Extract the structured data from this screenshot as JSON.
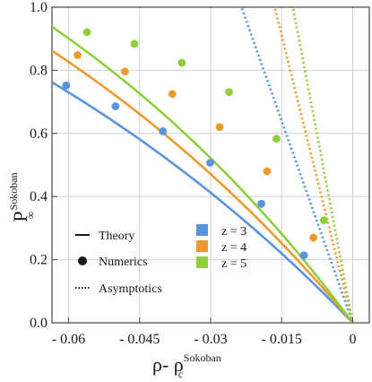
{
  "chart_data": {
    "type": "line",
    "xlabel_main": "ρ- ρ",
    "xlabel_sub": "c",
    "xlabel_sup": "Sokoban",
    "ylabel_main": "P",
    "ylabel_sub": "∞",
    "ylabel_sup": "Sokoban",
    "xlim": [
      -0.0635,
      0.0035
    ],
    "ylim": [
      0,
      1.0
    ],
    "x_ticks": [
      -0.06,
      -0.045,
      -0.03,
      -0.015,
      0
    ],
    "x_tick_labels": [
      "- 0.06",
      "- 0.045",
      "- 0.03",
      "- 0.015",
      "0"
    ],
    "y_ticks": [
      0,
      0.2,
      0.4,
      0.6,
      0.8,
      1.0
    ],
    "y_tick_labels": [
      "0.0",
      "0.2",
      "0.4",
      "0.6",
      "0.8",
      "1.0"
    ],
    "grid": true,
    "legend_style": [
      {
        "label": "Theory",
        "marker": "line"
      },
      {
        "label": "Numerics",
        "marker": "dot"
      },
      {
        "label": "Asymptotics",
        "marker": "dotted"
      }
    ],
    "legend_series": [
      {
        "label": "z = 3",
        "color": "#5b93dc"
      },
      {
        "label": "z = 4",
        "color": "#ee9a2e"
      },
      {
        "label": "z = 5",
        "color": "#8fce3c"
      }
    ],
    "series": [
      {
        "name": "z = 3",
        "color": "#5b93dc",
        "theory": {
          "y_at_x_min": 0.762,
          "curvature": 8.65
        },
        "asymptote_slope": -42.6,
        "numerics": [
          {
            "x": -0.0605,
            "y": 0.752
          },
          {
            "x": -0.0501,
            "y": 0.686
          },
          {
            "x": -0.0401,
            "y": 0.607
          },
          {
            "x": -0.0301,
            "y": 0.507
          },
          {
            "x": -0.0193,
            "y": 0.377
          },
          {
            "x": -0.0103,
            "y": 0.214
          }
        ]
      },
      {
        "name": "z = 4",
        "color": "#ee9a2e",
        "theory": {
          "y_at_x_min": 0.862,
          "curvature": 9.39
        },
        "asymptote_slope": -60.7,
        "numerics": [
          {
            "x": -0.0581,
            "y": 0.848
          },
          {
            "x": -0.0481,
            "y": 0.796
          },
          {
            "x": -0.0381,
            "y": 0.725
          },
          {
            "x": -0.0281,
            "y": 0.62
          },
          {
            "x": -0.0181,
            "y": 0.48
          },
          {
            "x": -0.0083,
            "y": 0.27
          }
        ]
      },
      {
        "name": "z = 5",
        "color": "#8fce3c",
        "theory": {
          "y_at_x_min": 0.938,
          "curvature": 10.6
        },
        "asymptote_slope": -79.2,
        "numerics": [
          {
            "x": -0.0561,
            "y": 0.921
          },
          {
            "x": -0.0461,
            "y": 0.884
          },
          {
            "x": -0.0361,
            "y": 0.824
          },
          {
            "x": -0.0261,
            "y": 0.731
          },
          {
            "x": -0.0161,
            "y": 0.583
          },
          {
            "x": -0.0061,
            "y": 0.325
          }
        ]
      }
    ]
  }
}
